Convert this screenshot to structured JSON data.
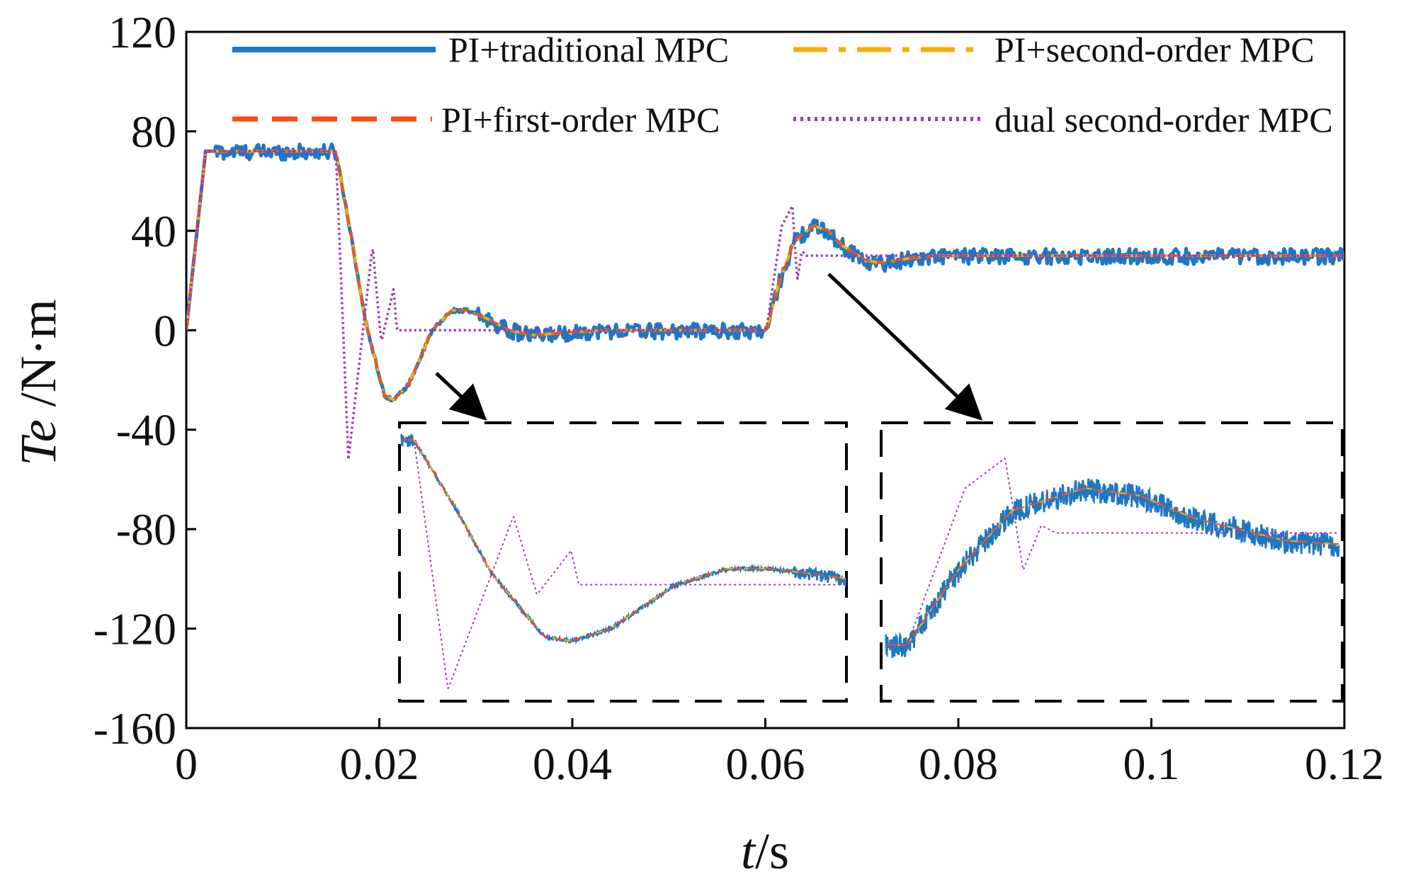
{
  "chart_data": {
    "type": "line",
    "title": "",
    "xlabel_italic": "t",
    "xlabel_rest": "/s",
    "ylabel_italic": "Te",
    "ylabel_rest": " /N·m",
    "xlim": [
      0,
      0.12
    ],
    "ylim": [
      -160,
      120
    ],
    "xticks": [
      0,
      0.02,
      0.04,
      0.06,
      0.08,
      0.1,
      0.12
    ],
    "xtick_labels": [
      "0",
      "0.02",
      "0.04",
      "0.06",
      "0.08",
      "0.1",
      "0.12"
    ],
    "yticks": [
      120,
      80,
      40,
      0,
      -40,
      -80,
      -120,
      -160
    ],
    "ytick_labels": [
      "120",
      "80",
      "40",
      "0",
      "-40",
      "-80",
      "-120",
      "-160"
    ],
    "grid": false,
    "legend_position": "top",
    "series": [
      {
        "name": "PI+traditional MPC",
        "color": "#1f77c4",
        "style": "solid-noisy",
        "points": [
          [
            0,
            0
          ],
          [
            0.002,
            72
          ],
          [
            0.0155,
            72
          ],
          [
            0.017,
            40
          ],
          [
            0.0185,
            5
          ],
          [
            0.0205,
            -26
          ],
          [
            0.0215,
            -28
          ],
          [
            0.023,
            -22
          ],
          [
            0.0255,
            0
          ],
          [
            0.0275,
            8
          ],
          [
            0.029,
            8
          ],
          [
            0.031,
            5
          ],
          [
            0.0335,
            0
          ],
          [
            0.036,
            -2
          ],
          [
            0.039,
            -1
          ],
          [
            0.043,
            0
          ],
          [
            0.0601,
            0
          ],
          [
            0.0615,
            20
          ],
          [
            0.063,
            36
          ],
          [
            0.065,
            42
          ],
          [
            0.0665,
            40
          ],
          [
            0.068,
            34
          ],
          [
            0.0705,
            28
          ],
          [
            0.072,
            27
          ],
          [
            0.075,
            29
          ],
          [
            0.078,
            30
          ],
          [
            0.12,
            30
          ]
        ]
      },
      {
        "name": "PI+second-order MPC",
        "color": "#f5b000",
        "style": "dash-dot",
        "points": [
          [
            0,
            0
          ],
          [
            0.002,
            72
          ],
          [
            0.0155,
            72
          ],
          [
            0.017,
            40
          ],
          [
            0.0185,
            5
          ],
          [
            0.0205,
            -26
          ],
          [
            0.0215,
            -28
          ],
          [
            0.023,
            -22
          ],
          [
            0.0255,
            0
          ],
          [
            0.0275,
            8
          ],
          [
            0.029,
            8
          ],
          [
            0.031,
            5
          ],
          [
            0.0335,
            0
          ],
          [
            0.036,
            -2
          ],
          [
            0.039,
            -1
          ],
          [
            0.043,
            0
          ],
          [
            0.0601,
            0
          ],
          [
            0.0615,
            20
          ],
          [
            0.063,
            36
          ],
          [
            0.065,
            42
          ],
          [
            0.0665,
            40
          ],
          [
            0.068,
            34
          ],
          [
            0.0705,
            28
          ],
          [
            0.072,
            27
          ],
          [
            0.075,
            29
          ],
          [
            0.078,
            30
          ],
          [
            0.12,
            30
          ]
        ]
      },
      {
        "name": "PI+first-order MPC",
        "color": "#ff4a14",
        "style": "dashed",
        "points": [
          [
            0,
            0
          ],
          [
            0.002,
            72
          ],
          [
            0.0155,
            72
          ],
          [
            0.017,
            40
          ],
          [
            0.0185,
            5
          ],
          [
            0.0205,
            -26
          ],
          [
            0.0215,
            -28
          ],
          [
            0.023,
            -22
          ],
          [
            0.0255,
            0
          ],
          [
            0.0275,
            8
          ],
          [
            0.029,
            8
          ],
          [
            0.031,
            5
          ],
          [
            0.0335,
            0
          ],
          [
            0.036,
            -2
          ],
          [
            0.039,
            -1
          ],
          [
            0.043,
            0
          ],
          [
            0.0601,
            0
          ],
          [
            0.0615,
            20
          ],
          [
            0.063,
            36
          ],
          [
            0.065,
            42
          ],
          [
            0.0665,
            40
          ],
          [
            0.068,
            34
          ],
          [
            0.0705,
            28
          ],
          [
            0.072,
            27
          ],
          [
            0.075,
            29
          ],
          [
            0.078,
            30
          ],
          [
            0.12,
            30
          ]
        ]
      },
      {
        "name": "dual second-order MPC",
        "color": "#9b3bb4",
        "style": "dotted",
        "points": [
          [
            0,
            0
          ],
          [
            0.002,
            72
          ],
          [
            0.0155,
            72
          ],
          [
            0.0168,
            -52
          ],
          [
            0.0193,
            34
          ],
          [
            0.0202,
            -5
          ],
          [
            0.0215,
            17
          ],
          [
            0.0218,
            0
          ],
          [
            0.03,
            0
          ],
          [
            0.0601,
            0
          ],
          [
            0.0617,
            42
          ],
          [
            0.0628,
            50
          ],
          [
            0.0633,
            20
          ],
          [
            0.0638,
            32
          ],
          [
            0.0642,
            30
          ],
          [
            0.12,
            30
          ]
        ]
      }
    ],
    "annotations": [
      "zoom-inset-settling",
      "zoom-inset-step"
    ]
  }
}
